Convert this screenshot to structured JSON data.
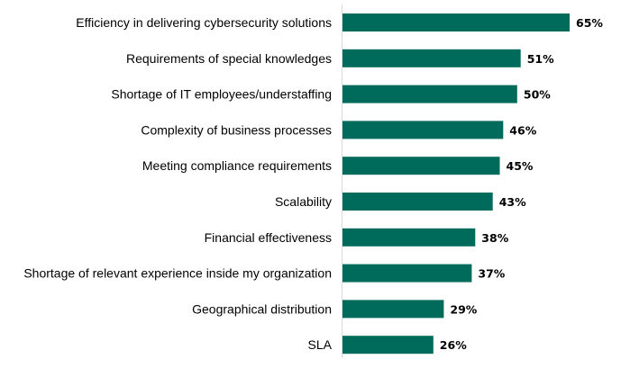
{
  "chart_data": {
    "type": "bar",
    "orientation": "horizontal",
    "categories": [
      "Efficiency in delivering cybersecurity solutions",
      "Requirements of special knowledges",
      "Shortage of IT employees/understaffing",
      "Complexity of business processes",
      "Meeting compliance requirements",
      "Scalability",
      "Financial effectiveness",
      "Shortage of relevant experience inside my organization",
      "Geographical distribution",
      "SLA"
    ],
    "values": [
      65,
      51,
      50,
      46,
      45,
      43,
      38,
      37,
      29,
      26
    ],
    "value_labels": [
      "65%",
      "51%",
      "50%",
      "46%",
      "45%",
      "43%",
      "38%",
      "37%",
      "29%",
      "26%"
    ],
    "unit": "%",
    "xlim": [
      0,
      100
    ],
    "grid": false,
    "legend": "none",
    "bar_color": "#006B5B"
  }
}
